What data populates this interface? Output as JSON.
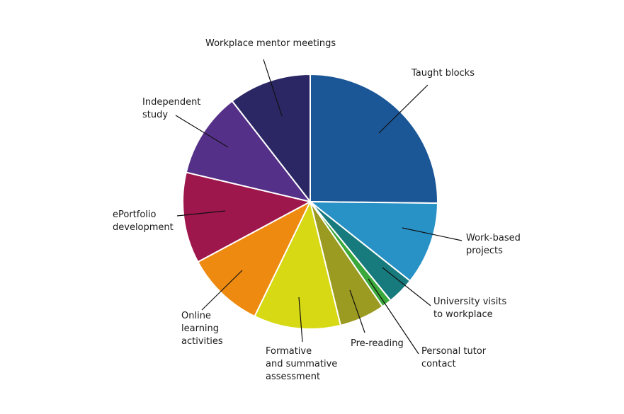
{
  "chart_data": {
    "type": "pie",
    "title": "",
    "start_angle_deg": 0,
    "direction": "clockwise",
    "slices": [
      {
        "label": "Taught blocks",
        "value": 24.0,
        "color": "#1b5796"
      },
      {
        "label": "Work-based\nprojects",
        "value": 10.0,
        "color": "#2891c6"
      },
      {
        "label": "University visits\nto workplace",
        "value": 3.3,
        "color": "#177a7c"
      },
      {
        "label": "Personal tutor\ncontact",
        "value": 1.2,
        "color": "#3aa83a"
      },
      {
        "label": "Pre-reading",
        "value": 5.5,
        "color": "#9b9a21"
      },
      {
        "label": "Formative\nand summative\nassessment",
        "value": 10.5,
        "color": "#d7d914"
      },
      {
        "label": "Online\nlearning\nactivities",
        "value": 9.5,
        "color": "#ef8a10"
      },
      {
        "label": "ePortfolio\ndevelopment",
        "value": 11.0,
        "color": "#9d164c"
      },
      {
        "label": "Independent\nstudy",
        "value": 10.3,
        "color": "#553089"
      },
      {
        "label": "Workplace mentor meetings",
        "value": 10.0,
        "color": "#2b2764"
      }
    ]
  }
}
